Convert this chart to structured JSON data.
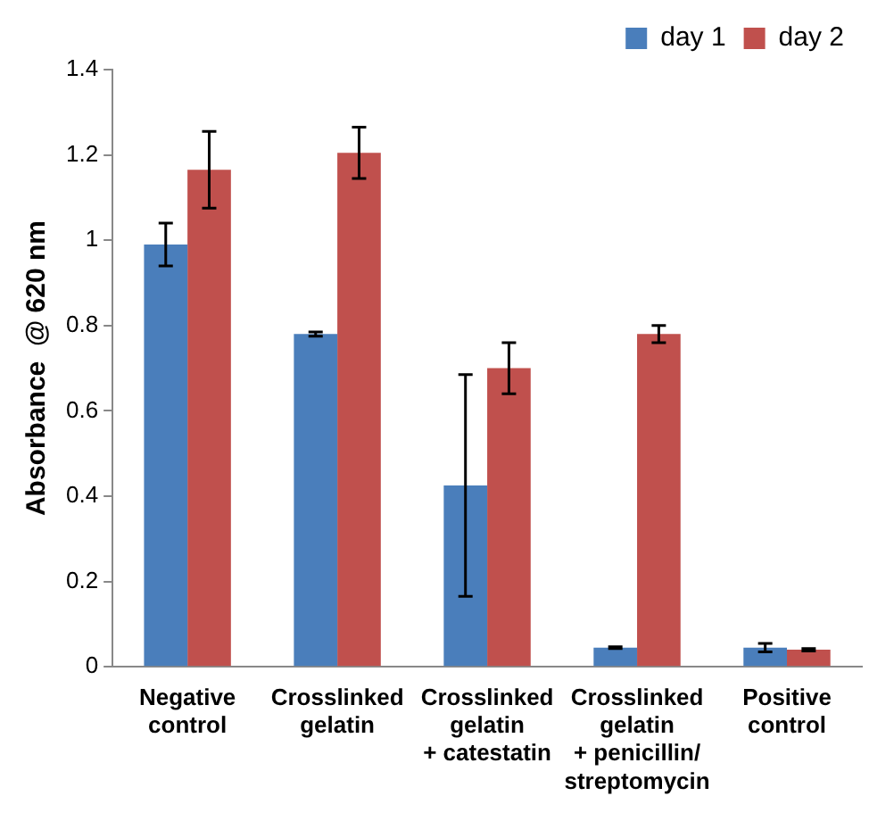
{
  "chart_data": {
    "type": "bar",
    "ylabel": "Absorbance  @ 620 nm",
    "categories": [
      "Negative\ncontrol",
      "Crosslinked\ngelatin",
      "Crosslinked\ngelatin\n+ catestatin",
      "Crosslinked\ngelatin\n+ penicillin/\nstreptomycin",
      "Positive\ncontrol"
    ],
    "series": [
      {
        "name": "day 1",
        "color": "#4a7ebb",
        "values": [
          0.99,
          0.78,
          0.425,
          0.045,
          0.045
        ],
        "errors": [
          0.05,
          0.005,
          0.26,
          0.002,
          0.01
        ]
      },
      {
        "name": "day 2",
        "color": "#c0504d",
        "values": [
          1.165,
          1.205,
          0.7,
          0.78,
          0.04
        ],
        "errors": [
          0.09,
          0.06,
          0.06,
          0.02,
          0.003
        ]
      }
    ],
    "ylim": [
      0,
      1.4
    ],
    "yticks": [
      0,
      0.2,
      0.4,
      0.6,
      0.8,
      1,
      1.2,
      1.4
    ],
    "grid": false,
    "legend": "top right"
  }
}
